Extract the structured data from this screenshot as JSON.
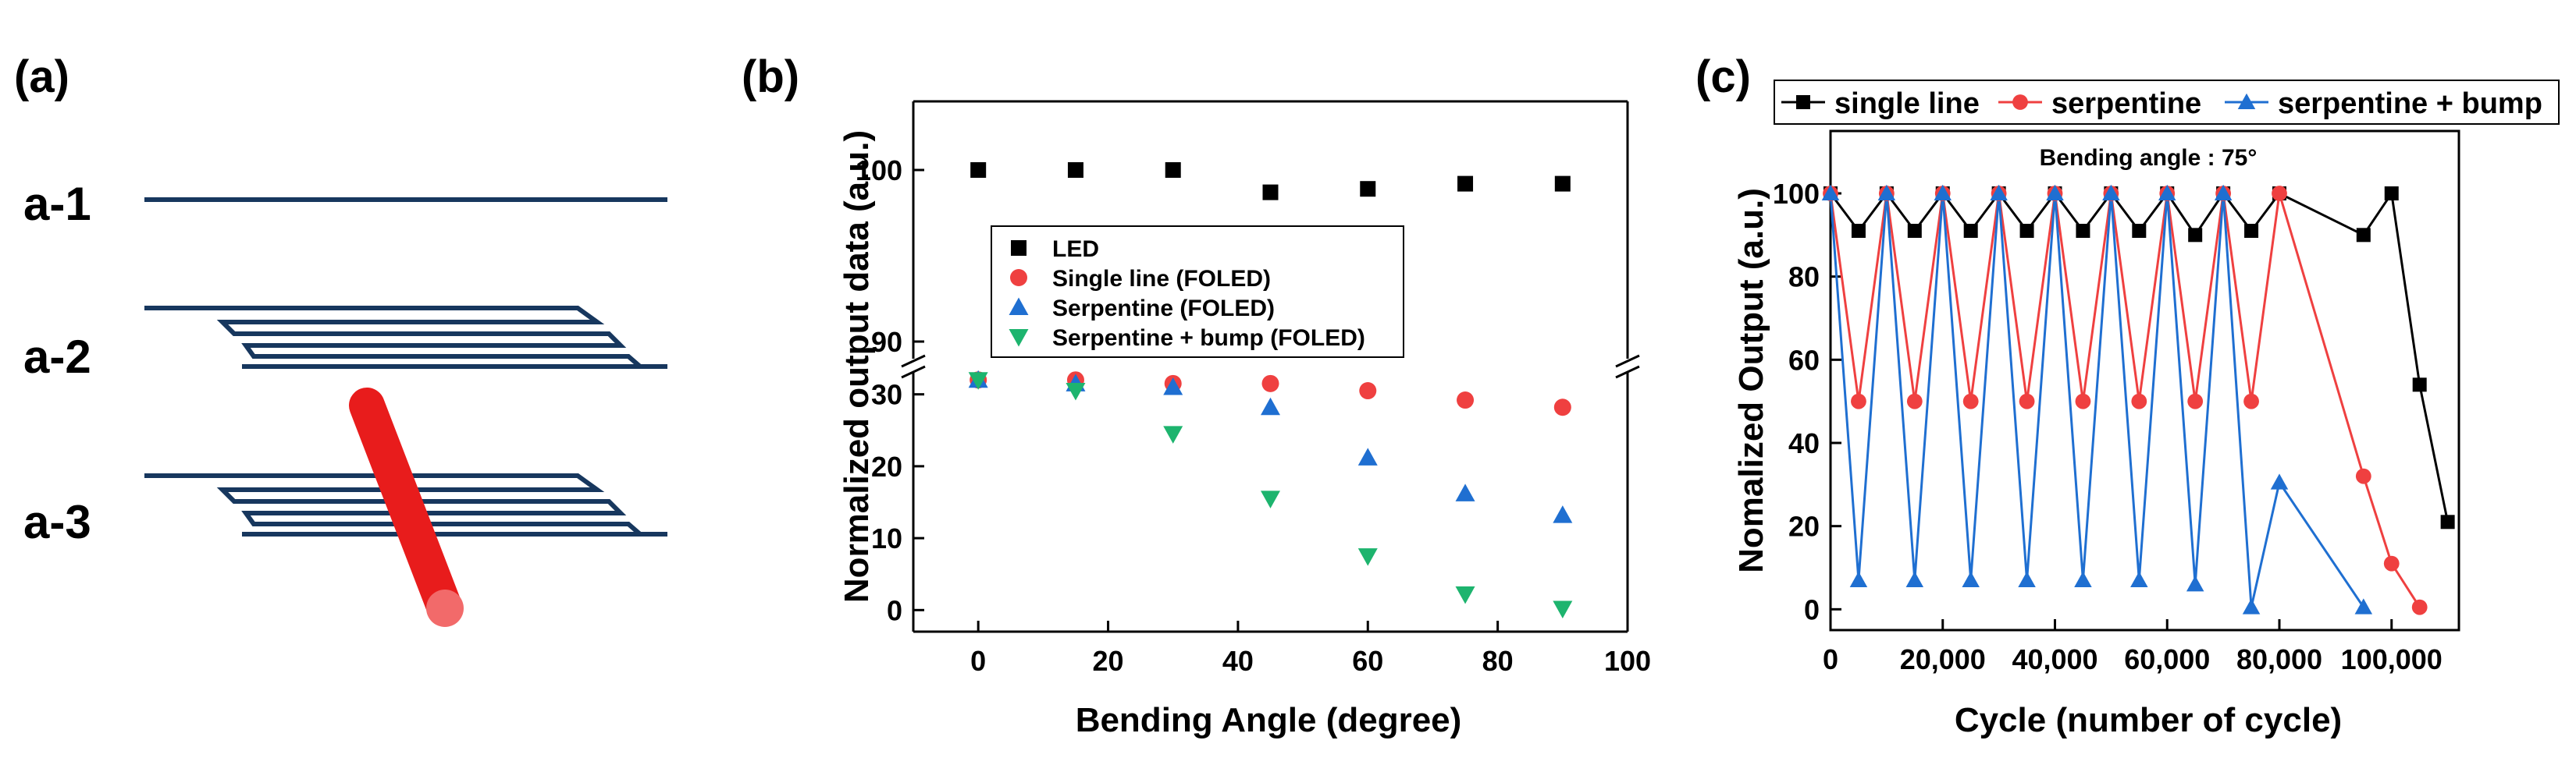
{
  "panels": {
    "a": {
      "label": "(a)",
      "rows": [
        "a-1",
        "a-2",
        "a-3"
      ],
      "colors": {
        "line": "#17375e",
        "rod": "#e81c1c",
        "rod_tip": "#f26a6a"
      }
    },
    "b": {
      "label": "(b)"
    },
    "c": {
      "label": "(c)"
    }
  },
  "chart_data": [
    {
      "id": "b",
      "type": "scatter",
      "xlabel": "Bending Angle (degree)",
      "ylabel": "Normalized output data (a.u.)",
      "xlim": [
        -10,
        100
      ],
      "xticks": [
        0,
        20,
        40,
        60,
        80,
        100
      ],
      "axis_break": {
        "lower_range": [
          -3,
          33
        ],
        "upper_range": [
          89,
          104
        ]
      },
      "yticks_lower": [
        0,
        10,
        20,
        30
      ],
      "yticks_upper": [
        90,
        100
      ],
      "x": [
        0,
        15,
        30,
        45,
        60,
        75,
        90
      ],
      "series": [
        {
          "name": "LED",
          "marker": "square",
          "color": "#000000",
          "values": [
            100,
            100,
            100,
            98.7,
            98.9,
            99.2,
            99.2
          ]
        },
        {
          "name": "Single line (FOLED)",
          "marker": "circle",
          "color": "#ef4040",
          "values": [
            32,
            32,
            31.5,
            31.5,
            30.5,
            29.2,
            28.2
          ]
        },
        {
          "name": "Serpentine (FOLED)",
          "marker": "triangle-up",
          "color": "#1f6fd1",
          "values": [
            32,
            31.5,
            31,
            28.2,
            21.2,
            16.2,
            13.2
          ]
        },
        {
          "name": "Serpentine + bump (FOLED)",
          "marker": "triangle-down",
          "color": "#1db46e",
          "values": [
            32,
            30.5,
            24.5,
            15.5,
            7.5,
            2.2,
            0.2
          ]
        }
      ]
    },
    {
      "id": "c",
      "type": "line",
      "xlabel": "Cycle (number of cycle)",
      "ylabel": "Nomalized Output (a.u.)",
      "annotation": "Bending angle : 75°",
      "xlim": [
        0,
        112000
      ],
      "ylim": [
        -5,
        115
      ],
      "xticks": [
        0,
        20000,
        40000,
        60000,
        80000,
        100000
      ],
      "xtick_labels": [
        "0",
        "20,000",
        "40,000",
        "60,000",
        "80,000",
        "100,000"
      ],
      "yticks": [
        0,
        20,
        40,
        60,
        80,
        100
      ],
      "series": [
        {
          "name": "single line",
          "marker": "square",
          "color": "#000000",
          "points": [
            [
              0,
              100
            ],
            [
              5000,
              91
            ],
            [
              10000,
              100
            ],
            [
              15000,
              91
            ],
            [
              20000,
              100
            ],
            [
              25000,
              91
            ],
            [
              30000,
              100
            ],
            [
              35000,
              91
            ],
            [
              40000,
              100
            ],
            [
              45000,
              91
            ],
            [
              50000,
              100
            ],
            [
              55000,
              91
            ],
            [
              60000,
              100
            ],
            [
              65000,
              90
            ],
            [
              70000,
              100
            ],
            [
              75000,
              91
            ],
            [
              80000,
              100
            ],
            [
              95000,
              90
            ],
            [
              100000,
              100
            ],
            [
              105000,
              54
            ],
            [
              110000,
              21
            ]
          ]
        },
        {
          "name": "serpentine",
          "marker": "circle",
          "color": "#ef4040",
          "points": [
            [
              0,
              100
            ],
            [
              5000,
              50
            ],
            [
              10000,
              100
            ],
            [
              15000,
              50
            ],
            [
              20000,
              100
            ],
            [
              25000,
              50
            ],
            [
              30000,
              100
            ],
            [
              35000,
              50
            ],
            [
              40000,
              100
            ],
            [
              45000,
              50
            ],
            [
              50000,
              100
            ],
            [
              55000,
              50
            ],
            [
              60000,
              100
            ],
            [
              65000,
              50
            ],
            [
              70000,
              100
            ],
            [
              75000,
              50
            ],
            [
              80000,
              100
            ],
            [
              95000,
              32
            ],
            [
              100000,
              11
            ],
            [
              105000,
              0.5
            ]
          ]
        },
        {
          "name": "serpentine + bump",
          "marker": "triangle-up",
          "color": "#1f6fd1",
          "points": [
            [
              0,
              100
            ],
            [
              5000,
              7
            ],
            [
              10000,
              100
            ],
            [
              15000,
              7
            ],
            [
              20000,
              100
            ],
            [
              25000,
              7
            ],
            [
              30000,
              100
            ],
            [
              35000,
              7
            ],
            [
              40000,
              100
            ],
            [
              45000,
              7
            ],
            [
              50000,
              100
            ],
            [
              55000,
              7
            ],
            [
              60000,
              100
            ],
            [
              65000,
              6
            ],
            [
              70000,
              100
            ],
            [
              75000,
              0.5
            ],
            [
              80000,
              30.5
            ],
            [
              95000,
              0.5
            ]
          ]
        }
      ]
    }
  ]
}
